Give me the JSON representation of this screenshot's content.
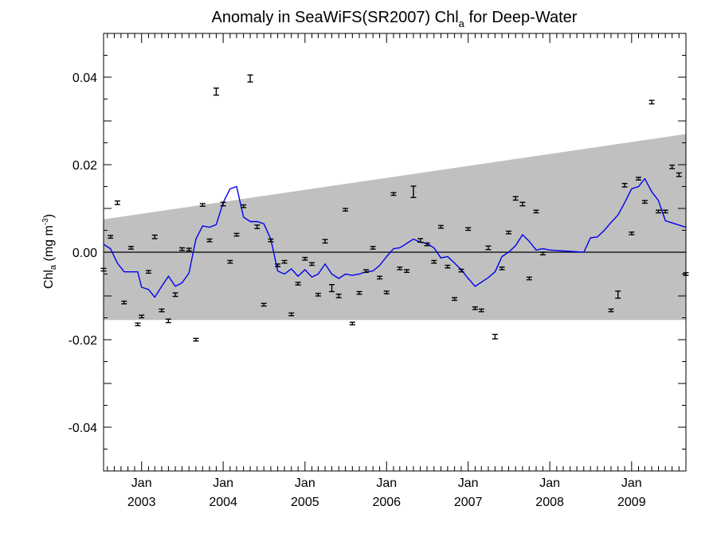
{
  "chart_data": {
    "type": "scatter",
    "title": "Anomaly in SeaWiFS(SR2007) Chl",
    "title_subscript": "a",
    "title_suffix": " for Deep-Water",
    "ylabel": "Chl",
    "ylabel_subscript": "a",
    "ylabel_units": " (mg m",
    "ylabel_units_exp": "-3",
    "ylabel_close": ")",
    "xlim": [
      "2002-07-15",
      "2009-09-01"
    ],
    "ylim": [
      -0.05,
      0.05
    ],
    "y_ticks": [
      {
        "value": 0.04,
        "label": "0.04"
      },
      {
        "value": 0.02,
        "label": "0.02"
      },
      {
        "value": 0.0,
        "label": "0.00"
      },
      {
        "value": -0.02,
        "label": "-0.02"
      },
      {
        "value": -0.04,
        "label": "-0.04"
      }
    ],
    "x_ticks": [
      {
        "date": "2003-01-01",
        "month": "Jan",
        "year": "2003"
      },
      {
        "date": "2004-01-01",
        "month": "Jan",
        "year": "2004"
      },
      {
        "date": "2005-01-01",
        "month": "Jan",
        "year": "2005"
      },
      {
        "date": "2006-01-01",
        "month": "Jan",
        "year": "2006"
      },
      {
        "date": "2007-01-01",
        "month": "Jan",
        "year": "2007"
      },
      {
        "date": "2008-01-01",
        "month": "Jan",
        "year": "2008"
      },
      {
        "date": "2009-01-01",
        "month": "Jan",
        "year": "2009"
      }
    ],
    "band": {
      "upper_start": [
        "2002-07-15",
        0.0075
      ],
      "upper_end": [
        "2009-09-01",
        0.027
      ],
      "lower": -0.0155,
      "color": "#c0c0c0"
    },
    "zero_line": true,
    "colors": {
      "line": "#0000ee",
      "points": "#000000"
    },
    "points": [
      {
        "date": "2002-07-15",
        "y": -0.004,
        "err": 0.0003
      },
      {
        "date": "2002-08-15",
        "y": 0.0035,
        "err": 0.0003
      },
      {
        "date": "2002-09-15",
        "y": 0.0113,
        "err": 0.0004
      },
      {
        "date": "2002-10-15",
        "y": -0.0115,
        "err": 0.0003
      },
      {
        "date": "2002-11-15",
        "y": 0.001,
        "err": 0.0003
      },
      {
        "date": "2002-12-15",
        "y": -0.0165,
        "err": 0.0003
      },
      {
        "date": "2003-01-01",
        "y": -0.0147,
        "err": 0.0003
      },
      {
        "date": "2003-02-01",
        "y": -0.0045,
        "err": 0.0003
      },
      {
        "date": "2003-03-01",
        "y": 0.0035,
        "err": 0.0004
      },
      {
        "date": "2003-04-01",
        "y": -0.0133,
        "err": 0.0003
      },
      {
        "date": "2003-05-01",
        "y": -0.0157,
        "err": 0.0004
      },
      {
        "date": "2003-06-01",
        "y": -0.0097,
        "err": 0.0004
      },
      {
        "date": "2003-07-01",
        "y": 0.0007,
        "err": 0.0003
      },
      {
        "date": "2003-08-01",
        "y": 0.0006,
        "err": 0.0003
      },
      {
        "date": "2003-09-01",
        "y": -0.02,
        "err": 0.0003
      },
      {
        "date": "2003-10-01",
        "y": 0.0108,
        "err": 0.0003
      },
      {
        "date": "2003-11-01",
        "y": 0.0027,
        "err": 0.0003
      },
      {
        "date": "2003-12-01",
        "y": 0.0367,
        "err": 0.0008
      },
      {
        "date": "2004-01-01",
        "y": 0.011,
        "err": 0.0004
      },
      {
        "date": "2004-02-01",
        "y": -0.0022,
        "err": 0.0003
      },
      {
        "date": "2004-03-01",
        "y": 0.004,
        "err": 0.0003
      },
      {
        "date": "2004-04-01",
        "y": 0.0105,
        "err": 0.0003
      },
      {
        "date": "2004-05-01",
        "y": 0.0397,
        "err": 0.0008
      },
      {
        "date": "2004-06-01",
        "y": 0.0058,
        "err": 0.0004
      },
      {
        "date": "2004-07-01",
        "y": -0.012,
        "err": 0.0003
      },
      {
        "date": "2004-08-01",
        "y": 0.0027,
        "err": 0.0003
      },
      {
        "date": "2004-09-01",
        "y": -0.003,
        "err": 0.0003
      },
      {
        "date": "2004-10-01",
        "y": -0.0022,
        "err": 0.0003
      },
      {
        "date": "2004-11-01",
        "y": -0.0142,
        "err": 0.0003
      },
      {
        "date": "2004-12-01",
        "y": -0.0072,
        "err": 0.0003
      },
      {
        "date": "2005-01-01",
        "y": -0.0015,
        "err": 0.0003
      },
      {
        "date": "2005-02-01",
        "y": -0.0027,
        "err": 0.0003
      },
      {
        "date": "2005-03-01",
        "y": -0.0097,
        "err": 0.0003
      },
      {
        "date": "2005-04-01",
        "y": 0.0025,
        "err": 0.0004
      },
      {
        "date": "2005-05-01",
        "y": -0.0082,
        "err": 0.0008
      },
      {
        "date": "2005-06-01",
        "y": -0.01,
        "err": 0.0004
      },
      {
        "date": "2005-07-01",
        "y": 0.0097,
        "err": 0.0003
      },
      {
        "date": "2005-08-01",
        "y": -0.0163,
        "err": 0.0003
      },
      {
        "date": "2005-09-01",
        "y": -0.0093,
        "err": 0.0003
      },
      {
        "date": "2005-10-01",
        "y": -0.0043,
        "err": 0.0003
      },
      {
        "date": "2005-11-01",
        "y": 0.001,
        "err": 0.0003
      },
      {
        "date": "2005-12-01",
        "y": -0.0058,
        "err": 0.0003
      },
      {
        "date": "2006-01-01",
        "y": -0.0092,
        "err": 0.0003
      },
      {
        "date": "2006-02-01",
        "y": 0.0133,
        "err": 0.0003
      },
      {
        "date": "2006-03-01",
        "y": -0.0037,
        "err": 0.0003
      },
      {
        "date": "2006-04-01",
        "y": -0.0043,
        "err": 0.0003
      },
      {
        "date": "2006-05-01",
        "y": 0.0138,
        "err": 0.0013
      },
      {
        "date": "2006-06-01",
        "y": 0.0027,
        "err": 0.0004
      },
      {
        "date": "2006-07-01",
        "y": 0.0018,
        "err": 0.0003
      },
      {
        "date": "2006-08-01",
        "y": -0.0022,
        "err": 0.0003
      },
      {
        "date": "2006-09-01",
        "y": 0.0058,
        "err": 0.0003
      },
      {
        "date": "2006-10-01",
        "y": -0.0033,
        "err": 0.0003
      },
      {
        "date": "2006-11-01",
        "y": -0.0107,
        "err": 0.0003
      },
      {
        "date": "2006-12-01",
        "y": -0.0042,
        "err": 0.0003
      },
      {
        "date": "2007-01-01",
        "y": 0.0053,
        "err": 0.0003
      },
      {
        "date": "2007-02-01",
        "y": -0.0128,
        "err": 0.0003
      },
      {
        "date": "2007-03-01",
        "y": -0.0133,
        "err": 0.0003
      },
      {
        "date": "2007-04-01",
        "y": 0.001,
        "err": 0.0004
      },
      {
        "date": "2007-05-01",
        "y": -0.0193,
        "err": 0.0005
      },
      {
        "date": "2007-06-01",
        "y": -0.0037,
        "err": 0.0003
      },
      {
        "date": "2007-07-01",
        "y": 0.0045,
        "err": 0.0003
      },
      {
        "date": "2007-08-01",
        "y": 0.0123,
        "err": 0.0004
      },
      {
        "date": "2007-09-01",
        "y": 0.011,
        "err": 0.0004
      },
      {
        "date": "2007-10-01",
        "y": -0.006,
        "err": 0.0003
      },
      {
        "date": "2007-11-01",
        "y": 0.0093,
        "err": 0.0003
      },
      {
        "date": "2007-12-01",
        "y": -0.0003,
        "err": 0.0003
      },
      {
        "date": "2008-10-01",
        "y": -0.0133,
        "err": 0.0003
      },
      {
        "date": "2008-11-01",
        "y": -0.0097,
        "err": 0.0008
      },
      {
        "date": "2008-12-01",
        "y": 0.0153,
        "err": 0.0004
      },
      {
        "date": "2009-01-01",
        "y": 0.0043,
        "err": 0.0003
      },
      {
        "date": "2009-02-01",
        "y": 0.0168,
        "err": 0.0003
      },
      {
        "date": "2009-03-01",
        "y": 0.0115,
        "err": 0.0003
      },
      {
        "date": "2009-04-01",
        "y": 0.0343,
        "err": 0.0004
      },
      {
        "date": "2009-05-01",
        "y": 0.0093,
        "err": 0.0003
      },
      {
        "date": "2009-06-01",
        "y": 0.0093,
        "err": 0.0003
      },
      {
        "date": "2009-07-01",
        "y": 0.0195,
        "err": 0.0004
      },
      {
        "date": "2009-08-01",
        "y": 0.0177,
        "err": 0.0004
      },
      {
        "date": "2009-09-01",
        "y": -0.005,
        "err": 0.0003
      }
    ],
    "line": [
      [
        "2002-07-15",
        0.0018
      ],
      [
        "2002-08-15",
        0.0008
      ],
      [
        "2002-09-15",
        -0.0025
      ],
      [
        "2002-10-15",
        -0.0045
      ],
      [
        "2002-11-15",
        -0.0045
      ],
      [
        "2002-12-15",
        -0.0045
      ],
      [
        "2003-01-01",
        -0.008
      ],
      [
        "2003-02-01",
        -0.0085
      ],
      [
        "2003-03-01",
        -0.0103
      ],
      [
        "2003-04-01",
        -0.0078
      ],
      [
        "2003-05-01",
        -0.0055
      ],
      [
        "2003-06-01",
        -0.0078
      ],
      [
        "2003-07-01",
        -0.007
      ],
      [
        "2003-08-01",
        -0.0048
      ],
      [
        "2003-09-01",
        0.003
      ],
      [
        "2003-10-01",
        0.006
      ],
      [
        "2003-11-01",
        0.0057
      ],
      [
        "2003-12-01",
        0.0063
      ],
      [
        "2004-01-01",
        0.0113
      ],
      [
        "2004-02-01",
        0.0145
      ],
      [
        "2004-03-01",
        0.015
      ],
      [
        "2004-04-01",
        0.008
      ],
      [
        "2004-05-01",
        0.007
      ],
      [
        "2004-06-01",
        0.007
      ],
      [
        "2004-07-01",
        0.0065
      ],
      [
        "2004-08-01",
        0.003
      ],
      [
        "2004-09-01",
        -0.0043
      ],
      [
        "2004-10-01",
        -0.005
      ],
      [
        "2004-11-01",
        -0.0038
      ],
      [
        "2004-12-01",
        -0.0055
      ],
      [
        "2005-01-01",
        -0.004
      ],
      [
        "2005-02-01",
        -0.0057
      ],
      [
        "2005-03-01",
        -0.005
      ],
      [
        "2005-04-01",
        -0.0027
      ],
      [
        "2005-05-01",
        -0.005
      ],
      [
        "2005-06-01",
        -0.006
      ],
      [
        "2005-07-01",
        -0.005
      ],
      [
        "2005-08-01",
        -0.0053
      ],
      [
        "2005-09-01",
        -0.005
      ],
      [
        "2005-10-01",
        -0.0045
      ],
      [
        "2005-11-01",
        -0.0043
      ],
      [
        "2005-12-01",
        -0.003
      ],
      [
        "2006-01-01",
        -0.001
      ],
      [
        "2006-02-01",
        0.0008
      ],
      [
        "2006-03-01",
        0.001
      ],
      [
        "2006-04-01",
        0.002
      ],
      [
        "2006-05-01",
        0.003
      ],
      [
        "2006-06-01",
        0.0023
      ],
      [
        "2006-07-01",
        0.002
      ],
      [
        "2006-08-01",
        0.001
      ],
      [
        "2006-09-01",
        -0.0013
      ],
      [
        "2006-10-01",
        -0.001
      ],
      [
        "2006-11-01",
        -0.0025
      ],
      [
        "2006-12-01",
        -0.004
      ],
      [
        "2007-01-01",
        -0.006
      ],
      [
        "2007-02-01",
        -0.0078
      ],
      [
        "2007-04-01",
        -0.0058
      ],
      [
        "2007-05-01",
        -0.0045
      ],
      [
        "2007-06-01",
        -0.001
      ],
      [
        "2007-07-01",
        0.0
      ],
      [
        "2007-08-01",
        0.0015
      ],
      [
        "2007-09-01",
        0.004
      ],
      [
        "2007-10-01",
        0.0025
      ],
      [
        "2007-11-01",
        0.0005
      ],
      [
        "2007-12-01",
        0.0008
      ],
      [
        "2008-01-01",
        0.0005
      ],
      [
        "2008-06-01",
        0.0
      ],
      [
        "2008-07-01",
        0.0033
      ],
      [
        "2008-08-01",
        0.0035
      ],
      [
        "2008-09-01",
        0.005
      ],
      [
        "2008-10-01",
        0.0068
      ],
      [
        "2008-11-01",
        0.0085
      ],
      [
        "2008-12-01",
        0.0113
      ],
      [
        "2009-01-01",
        0.0145
      ],
      [
        "2009-02-01",
        0.015
      ],
      [
        "2009-03-01",
        0.0168
      ],
      [
        "2009-04-01",
        0.0138
      ],
      [
        "2009-05-01",
        0.0118
      ],
      [
        "2009-06-01",
        0.0072
      ],
      [
        "2009-09-01",
        0.0057
      ]
    ]
  }
}
